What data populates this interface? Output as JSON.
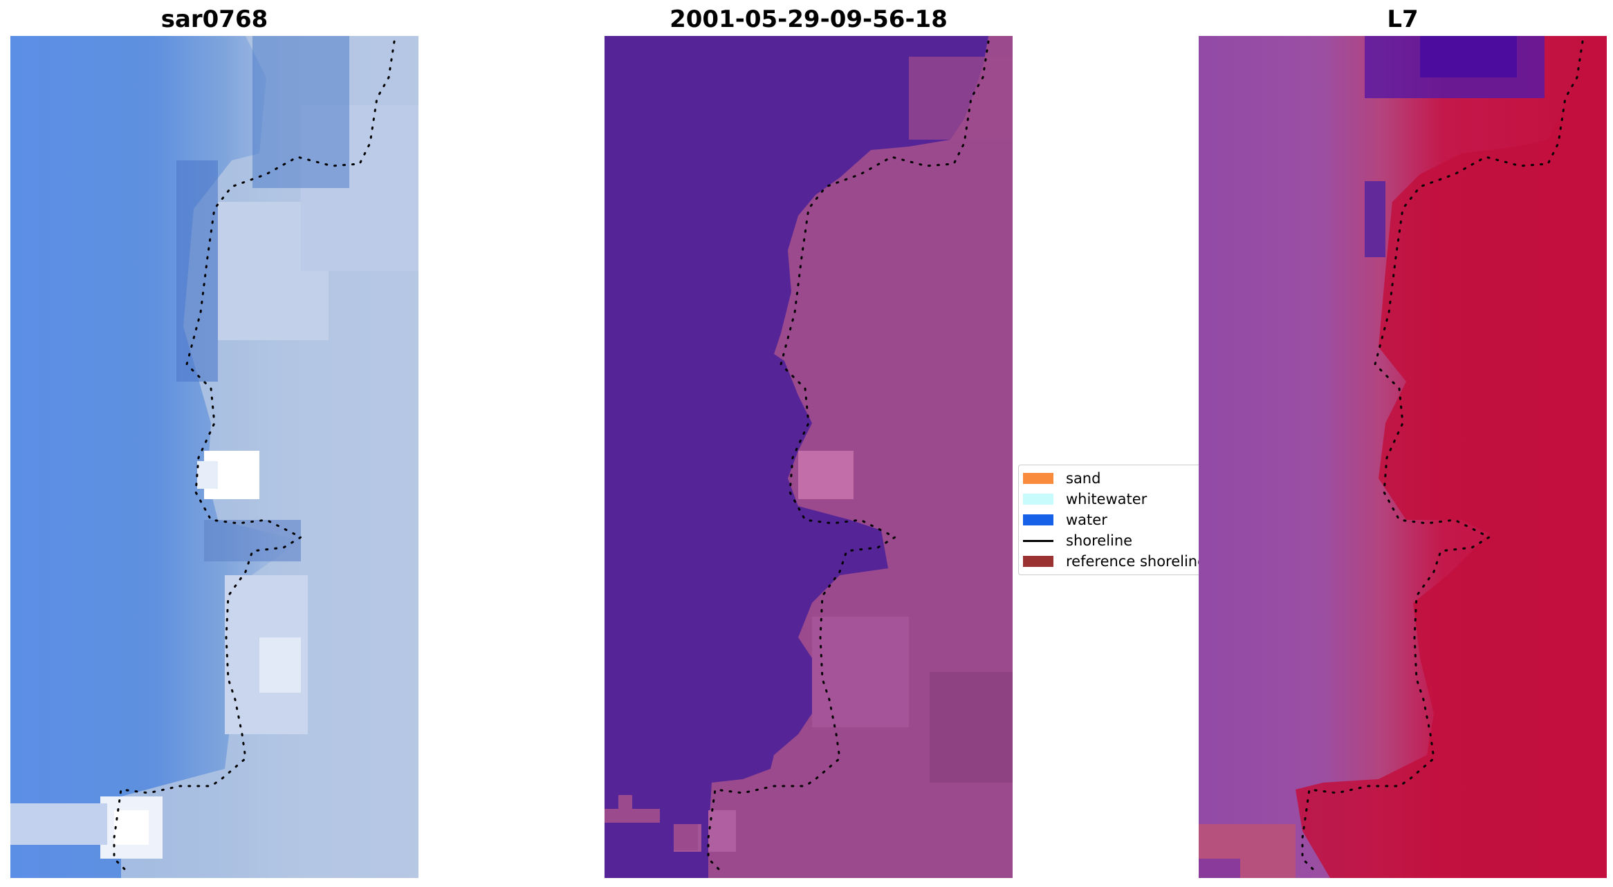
{
  "panels": [
    {
      "title": "sar0768"
    },
    {
      "title": "2001-05-29-09-56-18"
    },
    {
      "title": "L7"
    }
  ],
  "legend": {
    "items": [
      {
        "label": "sand",
        "type": "patch",
        "color": "#f98b3c"
      },
      {
        "label": "whitewater",
        "type": "patch",
        "color": "#c8fbfb"
      },
      {
        "label": "water",
        "type": "patch",
        "color": "#1760e8"
      },
      {
        "label": "shoreline",
        "type": "line",
        "color": "#000000"
      },
      {
        "label": "reference shoreline",
        "type": "patch",
        "color": "#9b3232"
      }
    ]
  },
  "colors": {
    "water_classified": "#552597",
    "land_classified": "#9b4a8d",
    "shoreline_dots": "#000000"
  }
}
